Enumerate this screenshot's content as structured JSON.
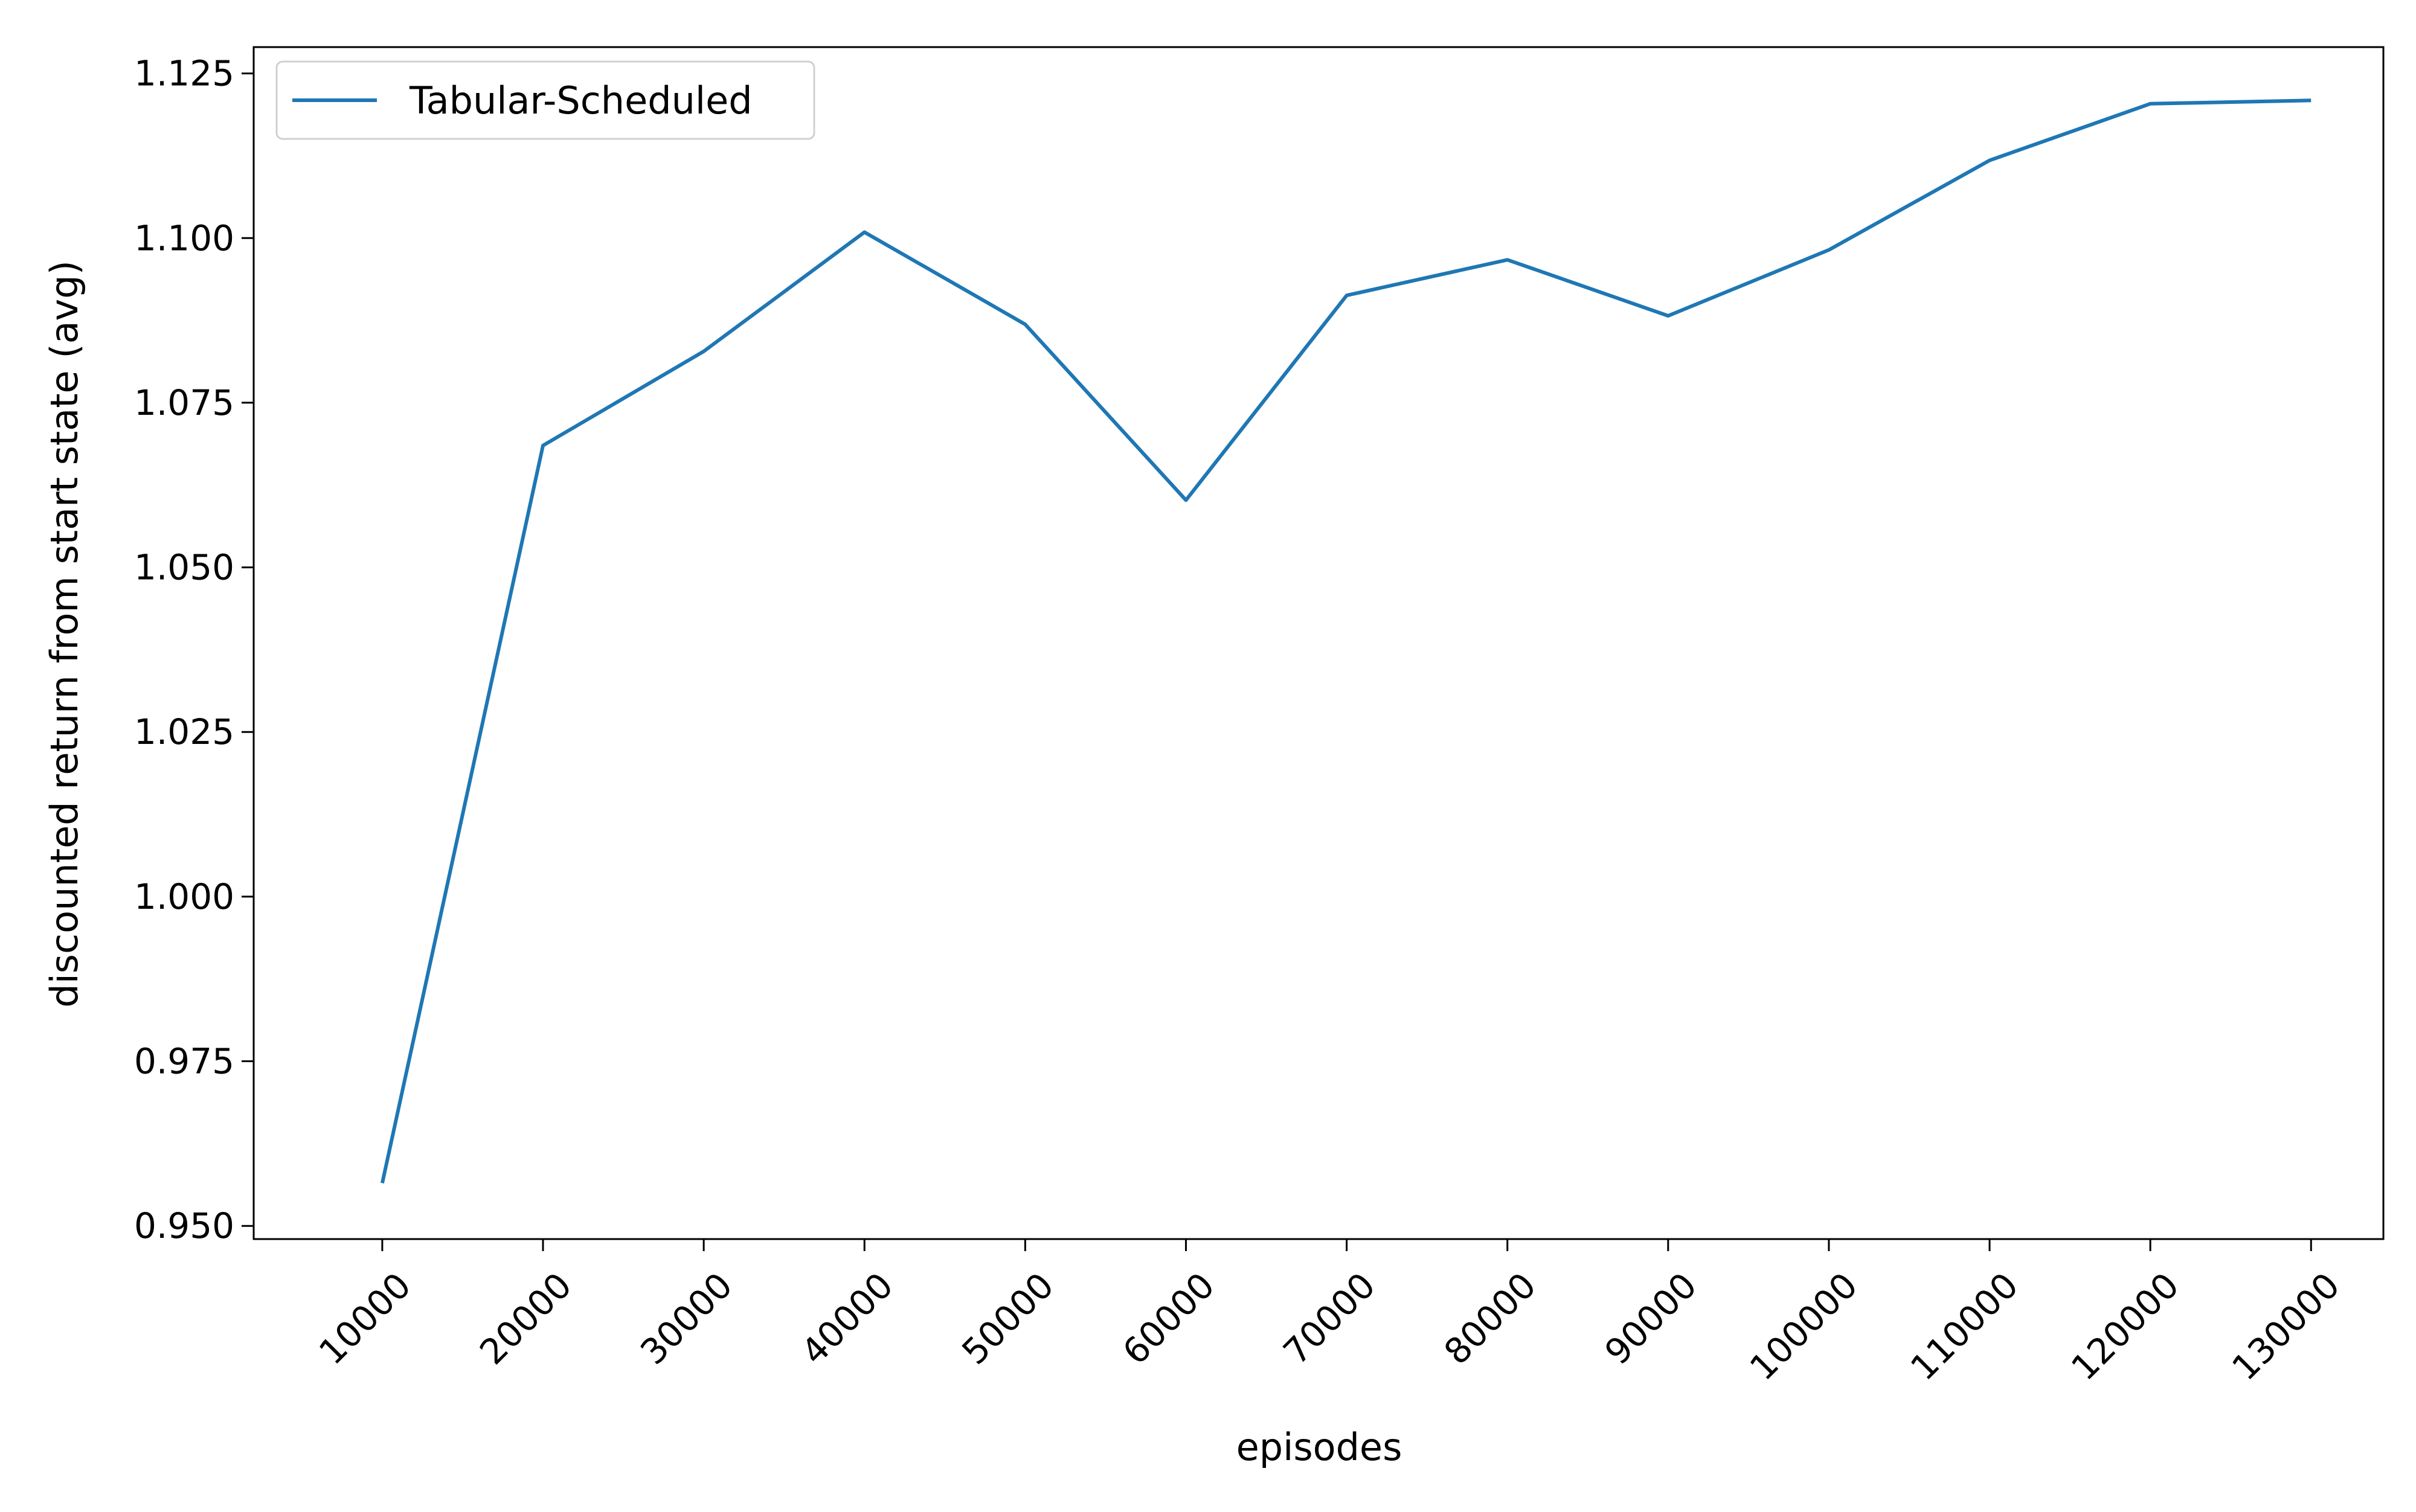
{
  "chart_data": {
    "type": "line",
    "title": "",
    "xlabel": "episodes",
    "ylabel": "discounted return from start state (avg)",
    "x": [
      10000,
      20000,
      30000,
      40000,
      50000,
      60000,
      70000,
      80000,
      90000,
      100000,
      110000,
      120000,
      130000
    ],
    "x_tick_labels": [
      "10000",
      "20000",
      "30000",
      "40000",
      "50000",
      "60000",
      "70000",
      "80000",
      "90000",
      "100000",
      "110000",
      "120000",
      "130000"
    ],
    "xlim": [
      2000,
      134500
    ],
    "ylim": [
      0.948,
      1.129
    ],
    "y_ticks": [
      0.95,
      0.975,
      1.0,
      1.025,
      1.05,
      1.075,
      1.1,
      1.125
    ],
    "y_tick_labels": [
      "0.950",
      "0.975",
      "1.000",
      "1.025",
      "1.050",
      "1.075",
      "1.100",
      "1.125"
    ],
    "grid": false,
    "legend": {
      "position": "upper-left"
    },
    "series": [
      {
        "name": "Tabular-Scheduled",
        "color": "#1f77b4",
        "values": [
          0.9565,
          1.0685,
          1.0828,
          1.1009,
          1.0869,
          1.0602,
          1.0913,
          1.0967,
          1.0882,
          1.0982,
          1.1118,
          1.1204,
          1.1209
        ]
      }
    ]
  }
}
